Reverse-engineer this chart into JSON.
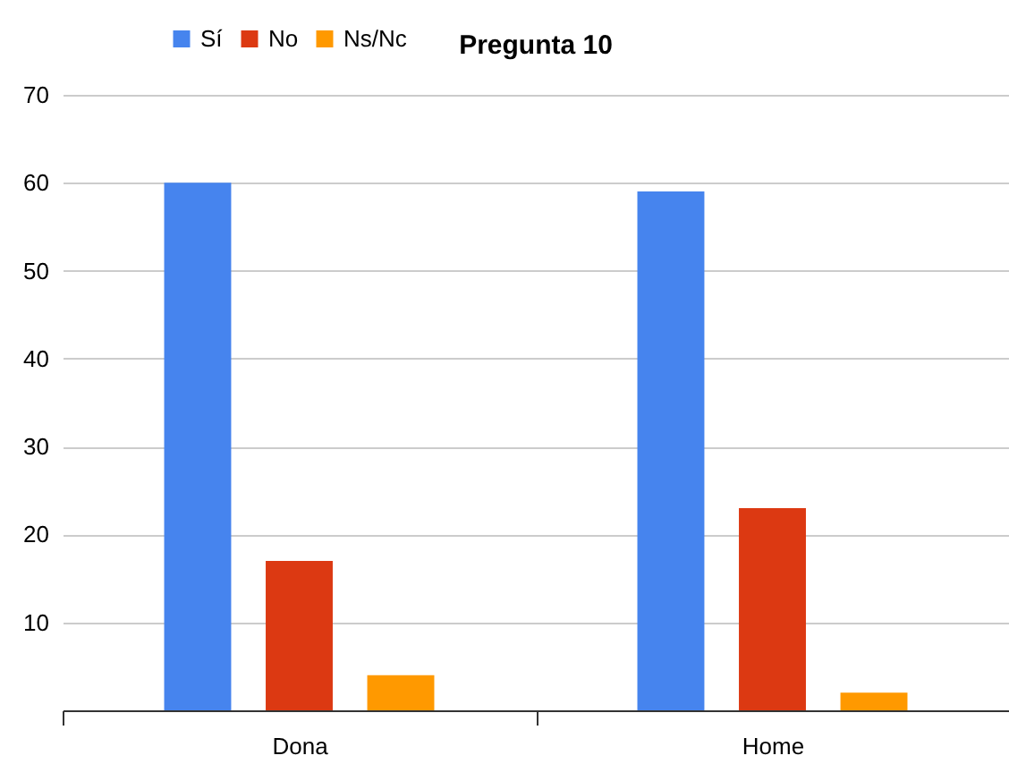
{
  "chart_data": {
    "type": "bar",
    "title": "Pregunta 10",
    "categories": [
      "Dona",
      "Home"
    ],
    "series": [
      {
        "name": "Sí",
        "color": "#4684ee",
        "values": [
          60,
          59
        ]
      },
      {
        "name": "No",
        "color": "#dc3912",
        "values": [
          17,
          23
        ]
      },
      {
        "name": "Ns/Nc",
        "color": "#ff9900",
        "values": [
          4,
          2
        ]
      }
    ],
    "ylim": [
      0,
      70
    ],
    "yticks": [
      {
        "value": 0,
        "label": null
      },
      10,
      20,
      30,
      40,
      50,
      60,
      70
    ],
    "grid": "y",
    "legend": "top"
  }
}
